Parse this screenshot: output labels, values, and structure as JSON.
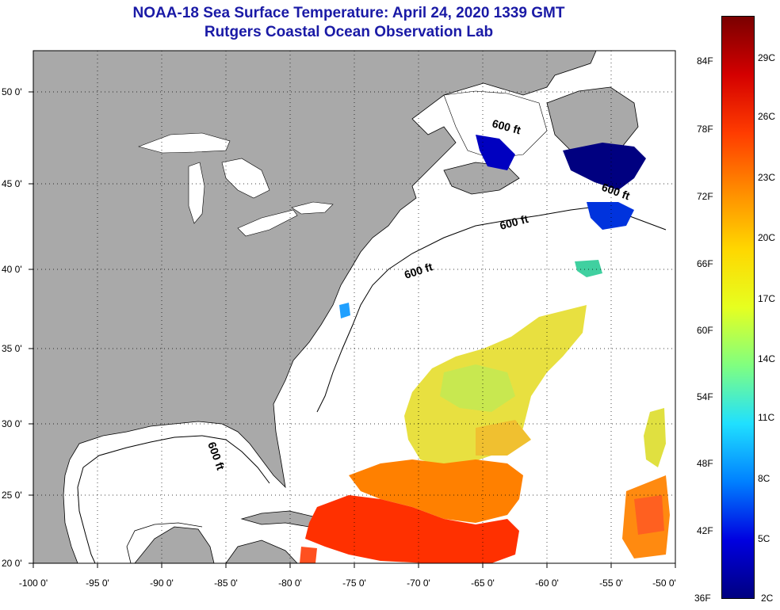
{
  "title": {
    "line1": "NOAA-18 Sea Surface Temperature:  April 24, 2020 1339 GMT",
    "line2": "Rutgers Coastal Ocean Observation Lab"
  },
  "map": {
    "lon_range": [
      -100,
      -50
    ],
    "lat_range": [
      20,
      52.5
    ],
    "x_ticks": [
      "-100 0'",
      "-95 0'",
      "-90 0'",
      "-85 0'",
      "-80 0'",
      "-75 0'",
      "-70 0'",
      "-65 0'",
      "-60 0'",
      "-55 0'",
      "-50 0'"
    ],
    "y_ticks": [
      "50 0'",
      "45 0'",
      "40 0'",
      "35 0'",
      "30 0'",
      "25 0'",
      "20 0'"
    ],
    "grid": "dotted",
    "contour_labels": [
      "600 ft",
      "600 ft",
      "600 ft",
      "600 ft",
      "600 ft"
    ],
    "colors": {
      "land": "#a9a9a9",
      "ocean_no_data": "#ffffff",
      "border": "#000000"
    }
  },
  "colorbar": {
    "fahrenheit": [
      "84F",
      "78F",
      "72F",
      "66F",
      "60F",
      "54F",
      "48F",
      "42F",
      "36F"
    ],
    "celsius": [
      "29C",
      "26C",
      "23C",
      "20C",
      "17C",
      "14C",
      "11C",
      "8C",
      "5C",
      "2C"
    ],
    "colors_top_to_bottom": [
      "#7a0000",
      "#d40000",
      "#ff3c00",
      "#ff8c00",
      "#ffd700",
      "#e6ff20",
      "#80ff80",
      "#20e0ff",
      "#0080ff",
      "#0000e0",
      "#000080"
    ]
  }
}
